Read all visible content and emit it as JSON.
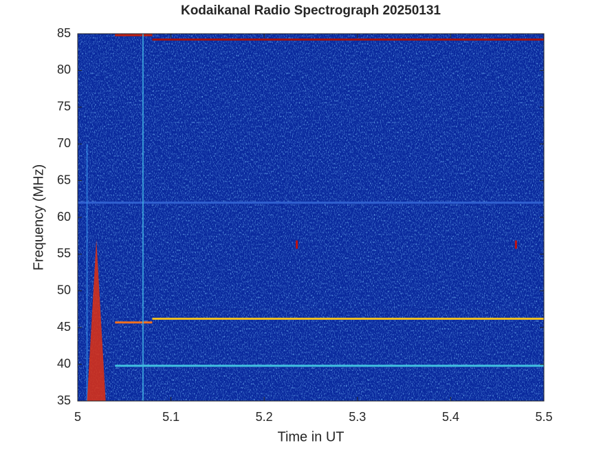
{
  "chart_data": {
    "type": "spectrogram",
    "title": "Kodaikanal Radio Spectrograph  20250131",
    "xlabel": "Time in UT",
    "ylabel": "Frequency (MHz)",
    "xlim": [
      5,
      5.5
    ],
    "ylim": [
      35,
      85
    ],
    "xticks": [
      5,
      5.1,
      5.2,
      5.3,
      5.4,
      5.5
    ],
    "yticks": [
      35,
      40,
      45,
      50,
      55,
      60,
      65,
      70,
      75,
      80,
      85
    ],
    "background_color": "#0a2a9e",
    "bands": [
      {
        "frequency": 84.2,
        "time": [
          5.08,
          5.5
        ],
        "color": "#a01010"
      },
      {
        "frequency": 84.8,
        "time": [
          5.04,
          5.08
        ],
        "color": "#c02010"
      },
      {
        "frequency": 46.2,
        "time": [
          5.08,
          5.5
        ],
        "color": "#f0c020"
      },
      {
        "frequency": 45.7,
        "time": [
          5.04,
          5.08
        ],
        "color": "#f07020"
      },
      {
        "frequency": 39.8,
        "time": [
          5.04,
          5.5
        ],
        "color": "#40c0e0"
      },
      {
        "frequency": 62,
        "time": [
          5,
          5.5
        ],
        "color": "#3060d0"
      }
    ],
    "vertical_lines": [
      {
        "time": 5.07,
        "frequency": [
          35,
          85
        ],
        "color": "#40b0e0"
      },
      {
        "time": 5.01,
        "frequency": [
          35,
          70
        ],
        "color": "#3080e0"
      }
    ],
    "bursts": [
      {
        "time": [
          5.01,
          5.03
        ],
        "frequency": [
          35,
          57
        ],
        "color": "#e03010"
      }
    ],
    "spots": [
      {
        "time": 5.235,
        "frequency": 56.3,
        "color": "#c01010"
      },
      {
        "time": 5.47,
        "frequency": 56.3,
        "color": "#c01010"
      }
    ]
  }
}
